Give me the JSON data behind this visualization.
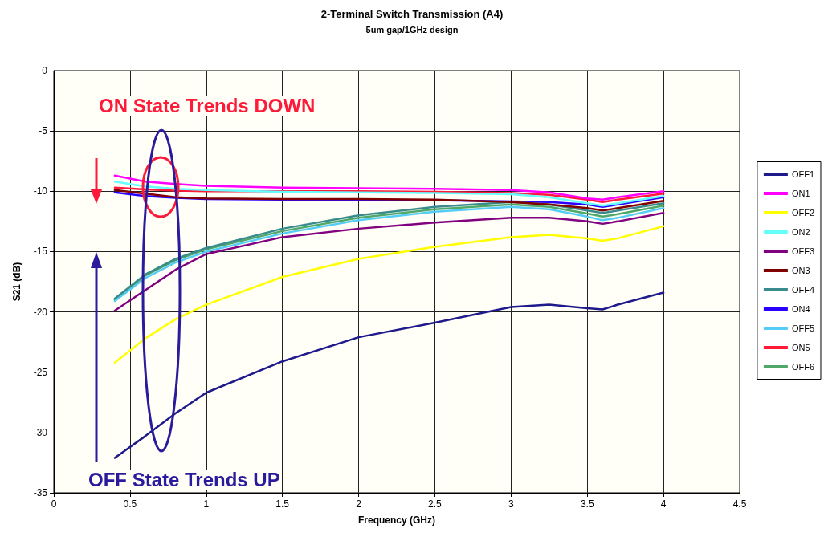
{
  "chart_data": {
    "type": "line",
    "title": "2-Terminal Switch Transmission (A4)",
    "subtitle": "5um gap/1GHz design",
    "xlabel": "Frequency (GHz)",
    "ylabel": "S21 (dB)",
    "x": [
      0.4,
      0.6,
      0.8,
      1.0,
      1.5,
      2.0,
      2.5,
      3.0,
      3.25,
      3.5,
      3.6,
      3.7,
      4.0
    ],
    "series": [
      {
        "name": "OFF1",
        "color": "#1f1a8c",
        "values": [
          -32.1,
          -30.3,
          -28.4,
          -26.7,
          -24.1,
          -22.1,
          -20.9,
          -19.6,
          -19.4,
          -19.7,
          -19.8,
          -19.4,
          -18.4
        ]
      },
      {
        "name": "ON1",
        "color": "#ff00ff",
        "values": [
          -8.7,
          -9.2,
          -9.4,
          -9.55,
          -9.7,
          -9.75,
          -9.8,
          -9.9,
          -10.1,
          -10.6,
          -10.7,
          -10.5,
          -10.0
        ]
      },
      {
        "name": "OFF2",
        "color": "#ffff00",
        "values": [
          -24.2,
          -22.2,
          -20.6,
          -19.4,
          -17.1,
          -15.6,
          -14.6,
          -13.8,
          -13.6,
          -13.9,
          -14.1,
          -13.9,
          -12.9
        ]
      },
      {
        "name": "ON2",
        "color": "#66ffff",
        "values": [
          -9.2,
          -9.6,
          -9.8,
          -9.9,
          -10.05,
          -10.1,
          -10.15,
          -10.25,
          -10.5,
          -11.0,
          -11.2,
          -11.0,
          -10.4
        ]
      },
      {
        "name": "OFF3",
        "color": "#800080",
        "values": [
          -19.9,
          -18.2,
          -16.5,
          -15.2,
          -13.8,
          -13.1,
          -12.6,
          -12.2,
          -12.2,
          -12.5,
          -12.7,
          -12.5,
          -11.8
        ]
      },
      {
        "name": "ON3",
        "color": "#800000",
        "values": [
          -9.9,
          -10.2,
          -10.5,
          -10.6,
          -10.65,
          -10.65,
          -10.7,
          -10.9,
          -11.1,
          -11.4,
          -11.6,
          -11.4,
          -10.8
        ]
      },
      {
        "name": "OFF4",
        "color": "#3a8c8c",
        "values": [
          -18.9,
          -16.9,
          -15.6,
          -14.7,
          -13.1,
          -12.0,
          -11.3,
          -10.9,
          -11.1,
          -11.6,
          -11.8,
          -11.6,
          -11.0
        ]
      },
      {
        "name": "ON4",
        "color": "#2a00ff",
        "values": [
          -10.1,
          -10.4,
          -10.55,
          -10.65,
          -10.7,
          -10.75,
          -10.75,
          -10.85,
          -10.9,
          -11.1,
          -11.3,
          -11.1,
          -10.5
        ]
      },
      {
        "name": "OFF5",
        "color": "#55ccf5",
        "values": [
          -19.1,
          -17.2,
          -15.9,
          -15.0,
          -13.5,
          -12.4,
          -11.7,
          -11.3,
          -11.5,
          -12.1,
          -12.4,
          -12.2,
          -11.4
        ]
      },
      {
        "name": "ON5",
        "color": "#ff1a3a",
        "values": [
          -9.7,
          -9.85,
          -9.95,
          -10.0,
          -10.0,
          -10.0,
          -10.05,
          -10.15,
          -10.3,
          -10.7,
          -10.9,
          -10.7,
          -10.2
        ]
      },
      {
        "name": "OFF6",
        "color": "#4fa86a",
        "values": [
          -19.0,
          -17.0,
          -15.7,
          -14.8,
          -13.3,
          -12.2,
          -11.5,
          -11.1,
          -11.3,
          -11.85,
          -12.1,
          -11.9,
          -11.2
        ]
      }
    ],
    "xlim": [
      0,
      4.5
    ],
    "xticks": [
      0,
      0.5,
      1,
      1.5,
      2,
      2.5,
      3,
      3.5,
      4,
      4.5
    ],
    "ylim": [
      -35,
      0
    ],
    "yticks": [
      -35,
      -30,
      -25,
      -20,
      -15,
      -10,
      -5,
      0
    ],
    "grid": true,
    "legend": "right",
    "marker": "none",
    "line_style": "solid",
    "annotations": [
      "ON State Trends DOWN",
      "OFF State Trends UP"
    ]
  }
}
